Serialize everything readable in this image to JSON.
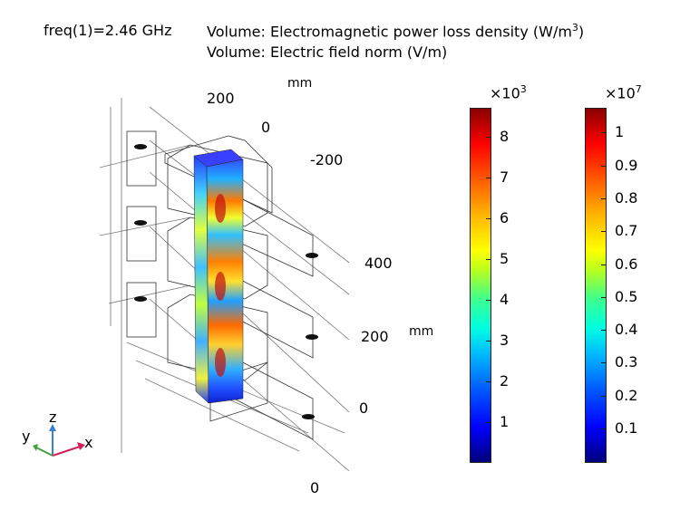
{
  "title": {
    "freq": "freq(1)=2.46 GHz",
    "line1_prefix": "Volume: Electromagnetic power loss density (W/m",
    "line1_sup": "3",
    "line1_suffix": ")",
    "line2": "Volume: Electric field norm (V/m)"
  },
  "axes": {
    "unit_top": "mm",
    "unit_right": "mm",
    "back_ticks": [
      "200",
      "0",
      "-200"
    ],
    "right_ticks": [
      "400",
      "200",
      "0"
    ],
    "bottom_tick": "0",
    "triad": {
      "z": "z",
      "y": "y",
      "x": "x"
    }
  },
  "colorbars": [
    {
      "multiplier_base": "×10",
      "multiplier_exp": "3",
      "ticks": [
        "1",
        "2",
        "3",
        "4",
        "5",
        "6",
        "7",
        "8"
      ]
    },
    {
      "multiplier_base": "×10",
      "multiplier_exp": "7",
      "ticks": [
        "0.1",
        "0.2",
        "0.3",
        "0.4",
        "0.5",
        "0.6",
        "0.7",
        "0.8",
        "0.9",
        "1"
      ]
    }
  ]
}
